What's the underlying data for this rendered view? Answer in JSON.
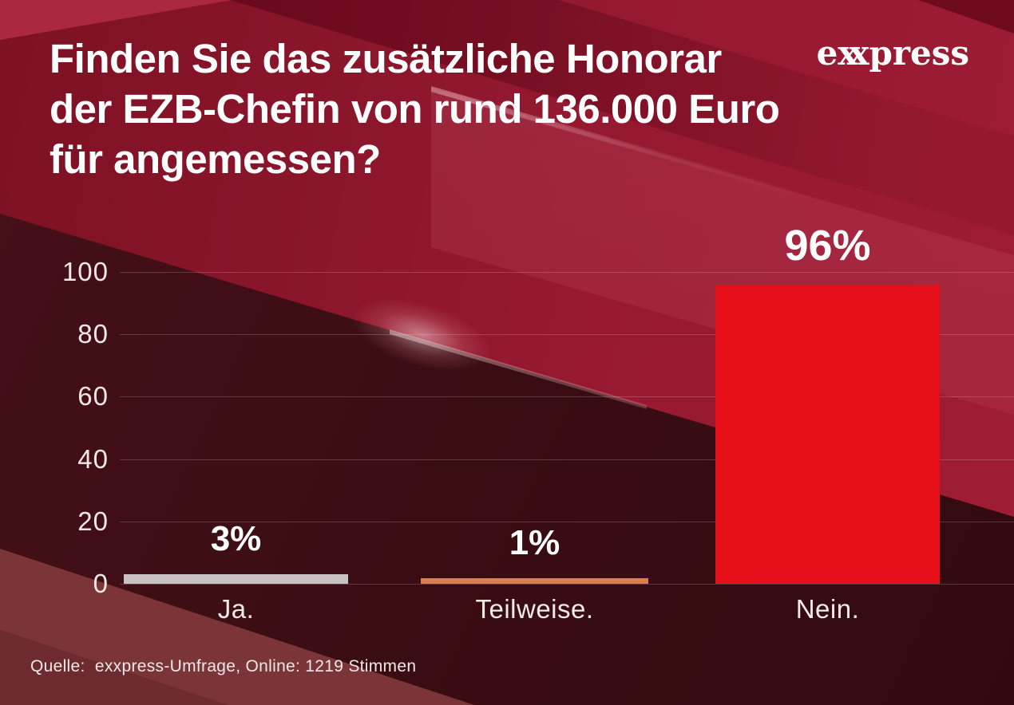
{
  "header": {
    "title_lines": [
      "Finden Sie das zusätzliche Honorar",
      "der EZB-Chefin von rund 136.000 Euro",
      "für angemessen?"
    ]
  },
  "brand": {
    "prefix": "e",
    "monogram_x1": "x",
    "monogram_x2": "x",
    "suffix": "press"
  },
  "chart_data": {
    "type": "bar",
    "title": "Finden Sie das zusätzliche Honorar der EZB-Chefin von rund 136.000 Euro für angemessen?",
    "categories": [
      "Ja.",
      "Teilweise.",
      "Nein."
    ],
    "values": [
      3,
      1,
      96
    ],
    "value_labels": [
      "3%",
      "1%",
      "96%"
    ],
    "bar_colors": [
      "#c8c2c3",
      "#e07c4a",
      "#e60e18"
    ],
    "yticks": [
      0,
      20,
      40,
      60,
      80,
      100
    ],
    "ylim": [
      0,
      100
    ],
    "grid": true,
    "legend": false,
    "source": "Quelle:  exxpress-Umfrage, Online: 1219 Stimmen"
  },
  "footer": {
    "source": "Quelle:  exxpress-Umfrage, Online: 1219 Stimmen"
  },
  "theme": {
    "background_crimson": "#951931",
    "chart_dark": "#3a0d13",
    "bar_red": "#e60e18",
    "bar_orange": "#e07c4a",
    "bar_gray": "#c8c2c3",
    "text": "#ffffff"
  }
}
